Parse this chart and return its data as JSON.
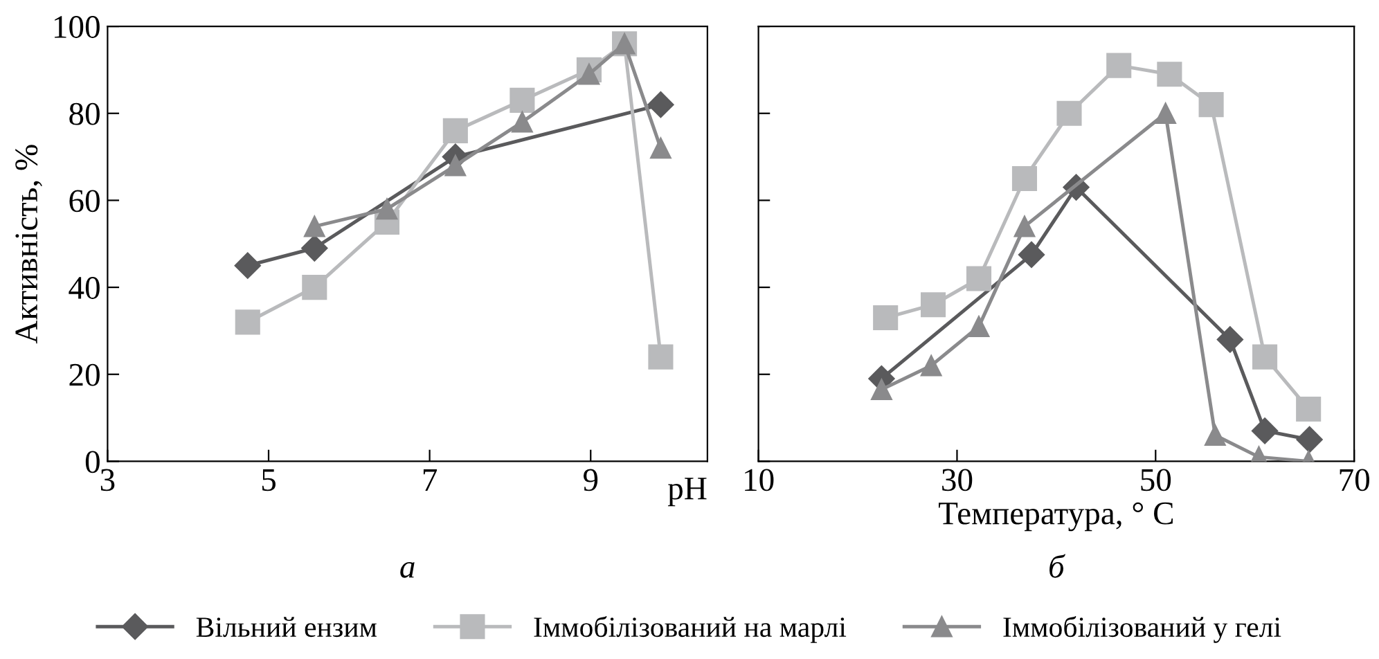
{
  "chart_data": [
    {
      "type": "line",
      "xlabel": "pH",
      "ylabel": "Активність, %",
      "annotations": [
        "а"
      ],
      "xlim": [
        3,
        10.45
      ],
      "ylim": [
        0,
        100
      ],
      "xticks": [
        3,
        5,
        7,
        9
      ],
      "yticks": [
        0,
        20,
        40,
        60,
        80,
        100
      ],
      "grid": false,
      "legend": "bottom",
      "series": [
        {
          "name": "Вільний ензим",
          "color": "#5a5a5c",
          "marker": "diamond",
          "x": [
            4.74,
            5.57,
            7.32,
            9.87
          ],
          "values": [
            45,
            49,
            70,
            82
          ]
        },
        {
          "name": "Іммобілізований на марлі",
          "color": "#b9babc",
          "marker": "square",
          "x": [
            4.74,
            5.57,
            6.47,
            7.32,
            8.15,
            8.98,
            9.42,
            9.87
          ],
          "values": [
            32,
            40,
            55,
            76,
            83,
            90,
            96,
            24
          ]
        },
        {
          "name": "Іммобілізований у гелі",
          "color": "#8a8a8c",
          "marker": "triangle",
          "x": [
            5.57,
            6.47,
            7.32,
            8.15,
            8.98,
            9.42,
            9.87
          ],
          "values": [
            54,
            58,
            68,
            78,
            89,
            96,
            72
          ]
        }
      ]
    },
    {
      "type": "line",
      "xlabel": "Температура, ° C",
      "annotations": [
        "б"
      ],
      "xlim": [
        10,
        70
      ],
      "ylim": [
        0,
        100
      ],
      "xticks": [
        10,
        30,
        50,
        70
      ],
      "yticks": [
        0,
        20,
        40,
        60,
        80,
        100
      ],
      "tick_labels": "x",
      "grid": false,
      "legend": "bottom",
      "series": [
        {
          "name": "Вільний ензим",
          "color": "#5a5a5c",
          "marker": "diamond",
          "x": [
            22.4,
            37.5,
            42,
            57.5,
            61,
            65.5
          ],
          "values": [
            19,
            47.5,
            63,
            28,
            7,
            5
          ]
        },
        {
          "name": "Іммобілізований на марлі",
          "color": "#b9babc",
          "marker": "square",
          "x": [
            22.8,
            27.6,
            32.2,
            36.8,
            41.3,
            46.3,
            51.4,
            55.6,
            61,
            65.4
          ],
          "values": [
            33,
            36,
            42,
            65,
            80,
            91,
            89,
            82,
            24,
            12
          ]
        },
        {
          "name": "Іммобілізований у гелі",
          "color": "#8a8a8c",
          "marker": "triangle",
          "x": [
            22.4,
            27.4,
            32.2,
            36.8,
            51,
            56,
            60.4,
            65.4
          ],
          "values": [
            16.5,
            22,
            31,
            54,
            80,
            6,
            1,
            0
          ]
        }
      ]
    }
  ]
}
